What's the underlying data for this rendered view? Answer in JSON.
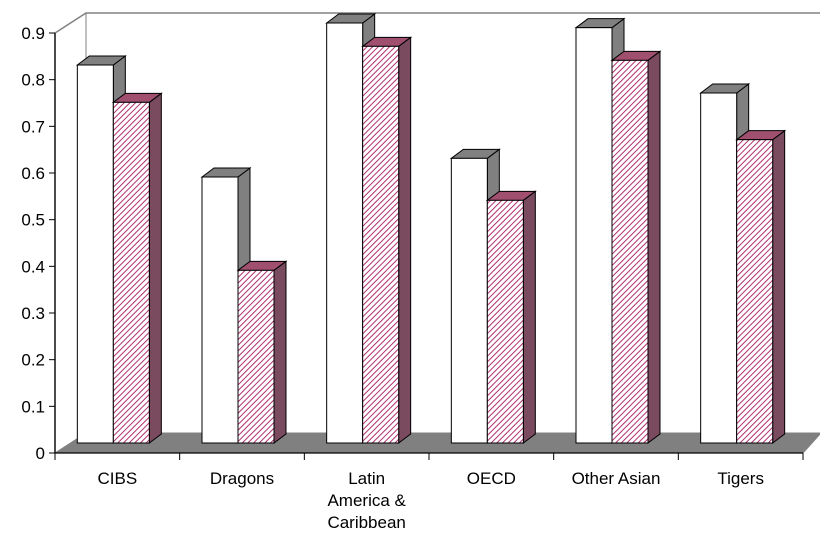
{
  "chart_data": {
    "type": "bar",
    "categories": [
      [
        "CIBS"
      ],
      [
        "Dragons"
      ],
      [
        "Latin",
        "America &",
        "Caribbean"
      ],
      [
        "OECD"
      ],
      [
        "Other Asian"
      ],
      [
        "Tigers"
      ]
    ],
    "series": [
      {
        "values": [
          0.81,
          0.57,
          0.9,
          0.61,
          0.89,
          0.75
        ],
        "fill": "#ffffff",
        "pattern": "none"
      },
      {
        "values": [
          0.73,
          0.37,
          0.85,
          0.52,
          0.82,
          0.65
        ],
        "fill": "#ffffff",
        "pattern": "diagonal-hatch",
        "hatch_color": "#b03070"
      }
    ],
    "ylim": [
      0,
      0.9
    ],
    "yticks": [
      "0",
      "0.1",
      "0.2",
      "0.3",
      "0.4",
      "0.5",
      "0.6",
      "0.7",
      "0.8",
      "0.9"
    ],
    "title": "",
    "xlabel": "",
    "ylabel": "",
    "grid": false,
    "legend": "none",
    "style": "3d-bar",
    "colors": {
      "floor": "#808080",
      "bar_side": "#808080",
      "axes": "#808080",
      "text": "#000000"
    }
  }
}
